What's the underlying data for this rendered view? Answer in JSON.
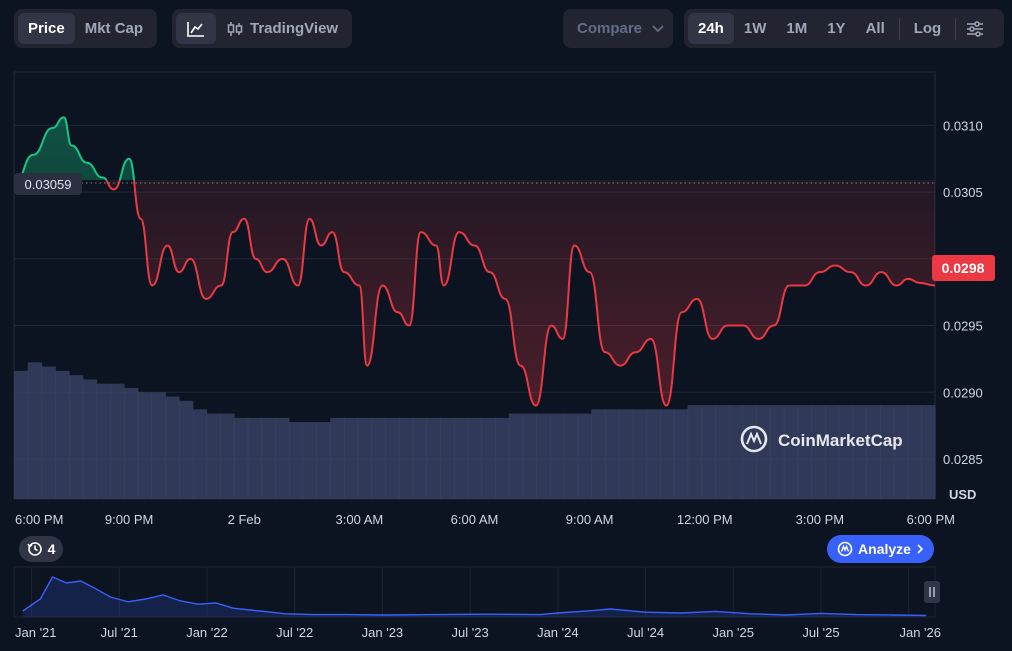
{
  "toolbar": {
    "type_tabs": [
      "Price",
      "Mkt Cap"
    ],
    "tradingview_label": "TradingView",
    "compare_label": "Compare",
    "ranges": [
      "24h",
      "1W",
      "1M",
      "1Y",
      "All"
    ],
    "log_label": "Log",
    "active_range": "24h",
    "active_type": "Price"
  },
  "chart": {
    "watermark": "CoinMarketCap",
    "currency": "USD",
    "current_price_label": "0.0298",
    "open_price_label": "0.03059",
    "history_count": "4",
    "analyze_label": "Analyze",
    "colors": {
      "up": "#16c784",
      "down": "#ea3943",
      "volume": "#3a4466",
      "accent": "#3861fb"
    }
  },
  "chart_data": [
    {
      "type": "area",
      "title": "",
      "xlabel": "",
      "ylabel": "USD",
      "ylim": [
        0.0282,
        0.0314
      ],
      "baseline": 0.03059,
      "y_ticks": [
        "0.0310",
        "0.0305",
        "0.0295",
        "0.0290",
        "0.0285"
      ],
      "x_ticks": [
        "6:00 PM",
        "9:00 PM",
        "2 Feb",
        "3:00 AM",
        "6:00 AM",
        "9:00 AM",
        "12:00 PM",
        "3:00 PM",
        "6:00 PM"
      ],
      "x_hours": [
        0,
        0.5,
        1,
        1.3,
        1.5,
        1.9,
        2.3,
        2.6,
        3,
        3.3,
        3.6,
        4,
        4.3,
        4.6,
        5,
        5.4,
        5.7,
        6,
        6.3,
        6.6,
        7,
        7.4,
        7.7,
        8,
        8.3,
        8.6,
        9,
        9.2,
        9.6,
        10,
        10.3,
        10.6,
        11,
        11.2,
        11.6,
        12,
        12.4,
        12.8,
        13.2,
        13.6,
        14,
        14.3,
        14.6,
        15,
        15.4,
        15.8,
        16.2,
        16.6,
        17,
        17.4,
        17.8,
        18.2,
        18.6,
        19,
        19.4,
        19.8,
        20.2,
        20.6,
        21,
        21.4,
        21.8,
        22.2,
        22.6,
        23,
        23.3,
        23.6,
        24
      ],
      "values": [
        0.03055,
        0.03078,
        0.03098,
        0.03106,
        0.03085,
        0.03072,
        0.03061,
        0.03052,
        0.03075,
        0.0303,
        0.0298,
        0.0301,
        0.0299,
        0.03,
        0.0297,
        0.0298,
        0.0302,
        0.0303,
        0.03,
        0.0299,
        0.03,
        0.0298,
        0.0303,
        0.0301,
        0.0302,
        0.0299,
        0.0298,
        0.0292,
        0.0298,
        0.0296,
        0.0295,
        0.0302,
        0.0301,
        0.0298,
        0.0302,
        0.0301,
        0.0299,
        0.0297,
        0.0292,
        0.0289,
        0.0295,
        0.0294,
        0.0301,
        0.0299,
        0.0293,
        0.0292,
        0.0293,
        0.0294,
        0.0289,
        0.0296,
        0.0297,
        0.0294,
        0.0295,
        0.0295,
        0.0294,
        0.0295,
        0.0298,
        0.0298,
        0.0299,
        0.02995,
        0.0299,
        0.0298,
        0.0299,
        0.0298,
        0.02985,
        0.02982,
        0.0298
      ],
      "volume": [
        0.3,
        0.32,
        0.31,
        0.3,
        0.29,
        0.28,
        0.27,
        0.27,
        0.26,
        0.25,
        0.25,
        0.24,
        0.23,
        0.21,
        0.2,
        0.2,
        0.19,
        0.19,
        0.19,
        0.19,
        0.18,
        0.18,
        0.18,
        0.19,
        0.19,
        0.19,
        0.19,
        0.19,
        0.19,
        0.19,
        0.19,
        0.19,
        0.19,
        0.19,
        0.19,
        0.19,
        0.2,
        0.2,
        0.2,
        0.2,
        0.2,
        0.2,
        0.21,
        0.21,
        0.21,
        0.21,
        0.21,
        0.21,
        0.21,
        0.22,
        0.22,
        0.22,
        0.22,
        0.22,
        0.22,
        0.22,
        0.22,
        0.22,
        0.22,
        0.22,
        0.22,
        0.22,
        0.22,
        0.22,
        0.22,
        0.22,
        0.22
      ]
    },
    {
      "type": "area",
      "title": "",
      "x_ticks": [
        "Jan '21",
        "Jul '21",
        "Jan '22",
        "Jul '22",
        "Jan '23",
        "Jul '23",
        "Jan '24",
        "Jul '24",
        "Jan '25",
        "Jul '25",
        "Jan '26"
      ],
      "x_years": [
        2020.95,
        2021.05,
        2021.12,
        2021.2,
        2021.28,
        2021.36,
        2021.45,
        2021.55,
        2021.65,
        2021.75,
        2021.85,
        2021.95,
        2022.05,
        2022.15,
        2022.3,
        2022.45,
        2022.6,
        2022.8,
        2023.0,
        2023.3,
        2023.6,
        2023.9,
        2024.0,
        2024.2,
        2024.3,
        2024.5,
        2024.7,
        2024.9,
        2025.1,
        2025.3,
        2025.5,
        2025.7,
        2025.9,
        2026.1
      ],
      "relative_values": [
        0.15,
        0.45,
        1.0,
        0.85,
        0.9,
        0.72,
        0.5,
        0.38,
        0.45,
        0.55,
        0.4,
        0.32,
        0.35,
        0.22,
        0.15,
        0.08,
        0.06,
        0.06,
        0.05,
        0.06,
        0.07,
        0.06,
        0.1,
        0.16,
        0.2,
        0.12,
        0.1,
        0.14,
        0.08,
        0.05,
        0.09,
        0.06,
        0.05,
        0.04
      ]
    }
  ]
}
